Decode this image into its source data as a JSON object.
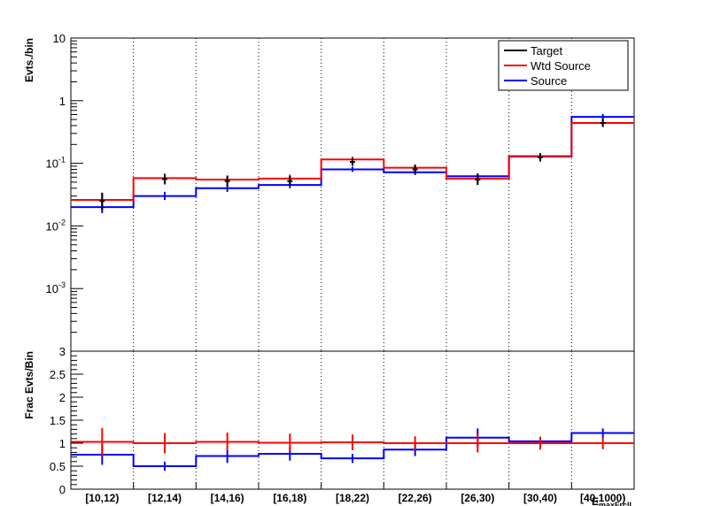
{
  "chart_data": [
    {
      "type": "line",
      "ylabel": "Evts./bin",
      "yscale": "log",
      "ylim": [
        0.0001,
        10
      ],
      "ytick_labels": [
        {
          "base": "10",
          "exp": "",
          "v": 10
        },
        {
          "base": "1",
          "exp": "",
          "v": 1
        },
        {
          "base": "10",
          "exp": "-1",
          "v": 0.1
        },
        {
          "base": "10",
          "exp": "-2",
          "v": 0.01
        },
        {
          "base": "10",
          "exp": "-3",
          "v": 0.001
        }
      ],
      "grid": "vertical dotted at bin edges",
      "legend": {
        "placement": "top-right",
        "entries": [
          {
            "name": "Target",
            "color": "#000000"
          },
          {
            "name": "Wtd Source",
            "color": "#ff0000"
          },
          {
            "name": "Source",
            "color": "#0000ff"
          }
        ]
      },
      "categories": [
        "[10,12)",
        "[12,14)",
        "[14,16)",
        "[16,18)",
        "[18,22)",
        "[22,26)",
        "[26,30)",
        "[30,40)",
        "[40,1000)"
      ],
      "series": [
        {
          "name": "Target",
          "color": "#000000",
          "values": [
            0.025,
            0.056,
            0.052,
            0.052,
            0.105,
            0.08,
            0.055,
            0.125,
            0.44
          ],
          "err_lo": [
            0.007,
            0.01,
            0.009,
            0.009,
            0.014,
            0.012,
            0.01,
            0.018,
            0.06
          ],
          "err_hi": [
            0.009,
            0.012,
            0.011,
            0.011,
            0.016,
            0.014,
            0.012,
            0.02,
            0.07
          ]
        },
        {
          "name": "Wtd Source",
          "color": "#ff0000",
          "values": [
            0.026,
            0.058,
            0.055,
            0.057,
            0.115,
            0.085,
            0.057,
            0.13,
            0.44
          ],
          "err_lo": [
            0.006,
            0.009,
            0.008,
            0.008,
            0.012,
            0.01,
            0.008,
            0.014,
            0.05
          ],
          "err_hi": [
            0.007,
            0.01,
            0.009,
            0.009,
            0.013,
            0.011,
            0.009,
            0.015,
            0.06
          ]
        },
        {
          "name": "Source",
          "color": "#0000ff",
          "values": [
            0.02,
            0.03,
            0.04,
            0.045,
            0.08,
            0.072,
            0.062,
            0.128,
            0.55
          ],
          "err_lo": [
            0.004,
            0.004,
            0.005,
            0.005,
            0.007,
            0.007,
            0.006,
            0.01,
            0.05
          ],
          "err_hi": [
            0.005,
            0.005,
            0.006,
            0.006,
            0.008,
            0.008,
            0.007,
            0.011,
            0.06
          ]
        }
      ]
    },
    {
      "type": "line",
      "ylabel": "Frac Evts/Bin",
      "xlabel": "E_maxFrclI",
      "ylim": [
        0,
        3
      ],
      "ytick_labels": [
        "0",
        "0.5",
        "1",
        "1.5",
        "2",
        "2.5",
        "3"
      ],
      "categories": [
        "[10,12)",
        "[12,14)",
        "[14,16)",
        "[16,18)",
        "[18,22)",
        "[22,26)",
        "[26,30)",
        "[30,40)",
        "[40,1000)"
      ],
      "series": [
        {
          "name": "Wtd Source",
          "color": "#ff0000",
          "values": [
            1.03,
            1.0,
            1.03,
            1.01,
            1.02,
            1.0,
            1.0,
            1.0,
            1.0
          ],
          "err": [
            0.3,
            0.22,
            0.2,
            0.2,
            0.17,
            0.15,
            0.2,
            0.14,
            0.13
          ]
        },
        {
          "name": "Source",
          "color": "#0000ff",
          "values": [
            0.75,
            0.5,
            0.72,
            0.77,
            0.67,
            0.86,
            1.12,
            1.04,
            1.22
          ],
          "err": [
            0.22,
            0.1,
            0.15,
            0.15,
            0.1,
            0.14,
            0.2,
            0.1,
            0.1
          ]
        }
      ]
    }
  ]
}
